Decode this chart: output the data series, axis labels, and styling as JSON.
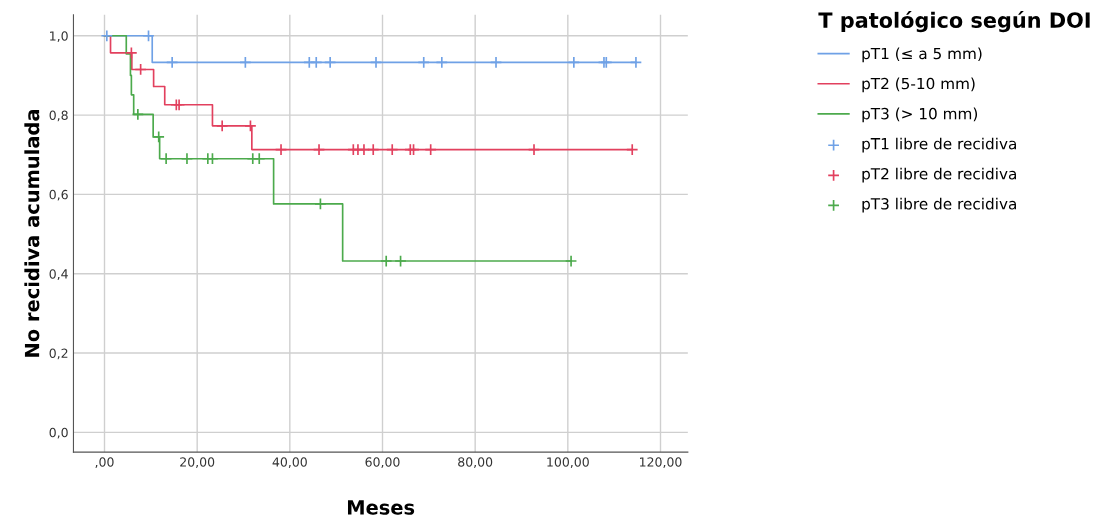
{
  "chart_data": {
    "type": "step",
    "xlabel": "Meses",
    "ylabel": "No recidiva acumulada",
    "legend_title": "T patológico según DOI",
    "legend": "right",
    "grid": true,
    "xlim": [
      -6.7,
      125.9
    ],
    "ylim": [
      -0.05,
      1.053
    ],
    "xticks": [
      {
        "value": 0,
        "label": ",00"
      },
      {
        "value": 20,
        "label": "20,00"
      },
      {
        "value": 40,
        "label": "40,00"
      },
      {
        "value": 60,
        "label": "60,00"
      },
      {
        "value": 80,
        "label": "80,00"
      },
      {
        "value": 100,
        "label": "100,00"
      },
      {
        "value": 120,
        "label": "120,00"
      }
    ],
    "yticks": [
      {
        "value": 0,
        "label": "0,0"
      },
      {
        "value": 0.2,
        "label": "0,2"
      },
      {
        "value": 0.4,
        "label": "0,4"
      },
      {
        "value": 0.6,
        "label": "0,6"
      },
      {
        "value": 0.8,
        "label": "0,8"
      },
      {
        "value": 1.0,
        "label": "1,0"
      }
    ],
    "series": [
      {
        "name": "pT1 (≤ a 5 mm)",
        "color": "#6fa1e6",
        "x": [
          0,
          10.3,
          114.7
        ],
        "values": [
          1.0,
          0.933,
          0.933
        ]
      },
      {
        "name": "pT2 (5-10 mm)",
        "color": "#e2405e",
        "x": [
          0,
          1.3,
          5.9,
          10.6,
          13.0,
          23.3,
          31.8,
          113.9
        ],
        "values": [
          1.0,
          0.957,
          0.915,
          0.872,
          0.826,
          0.773,
          0.713,
          0.713
        ]
      },
      {
        "name": "pT3 (> 10 mm)",
        "color": "#4caa4c",
        "x": [
          0,
          4.7,
          5.6,
          5.8,
          6.3,
          10.5,
          11.9,
          36.5,
          51.4,
          100.7
        ],
        "values": [
          1.0,
          0.954,
          0.9,
          0.851,
          0.802,
          0.745,
          0.69,
          0.576,
          0.432,
          0.432
        ]
      },
      {
        "name": "pT1 libre de recidiva",
        "type": "scatter",
        "marker": "cross",
        "color": "#6fa1e6",
        "x": [
          0.5,
          9.5,
          14.6,
          30.4,
          44.2,
          45.7,
          48.7,
          58.6,
          68.9,
          72.8,
          84.5,
          101.3,
          107.8,
          108.3,
          114.7
        ],
        "values": [
          1.0,
          1.0,
          0.933,
          0.933,
          0.933,
          0.933,
          0.933,
          0.933,
          0.933,
          0.933,
          0.933,
          0.933,
          0.933,
          0.933,
          0.933
        ]
      },
      {
        "name": "pT2 libre de recidiva",
        "type": "scatter",
        "marker": "cross",
        "color": "#e2405e",
        "x": [
          5.8,
          7.8,
          15.5,
          16.1,
          25.4,
          31.5,
          38.1,
          46.3,
          53.7,
          54.7,
          56.0,
          58.0,
          62.1,
          66.0,
          66.7,
          70.4,
          92.7,
          113.9
        ],
        "values": [
          0.957,
          0.915,
          0.826,
          0.826,
          0.773,
          0.773,
          0.713,
          0.713,
          0.713,
          0.713,
          0.713,
          0.713,
          0.713,
          0.713,
          0.713,
          0.713,
          0.713,
          0.713
        ]
      },
      {
        "name": "pT3 libre de recidiva",
        "type": "scatter",
        "marker": "cross",
        "color": "#4caa4c",
        "x": [
          7.2,
          11.7,
          13.3,
          17.8,
          22.3,
          23.3,
          32.0,
          33.4,
          46.6,
          60.8,
          63.9,
          100.7
        ],
        "values": [
          0.802,
          0.745,
          0.69,
          0.69,
          0.69,
          0.69,
          0.69,
          0.69,
          0.576,
          0.432,
          0.432,
          0.432
        ]
      }
    ]
  }
}
